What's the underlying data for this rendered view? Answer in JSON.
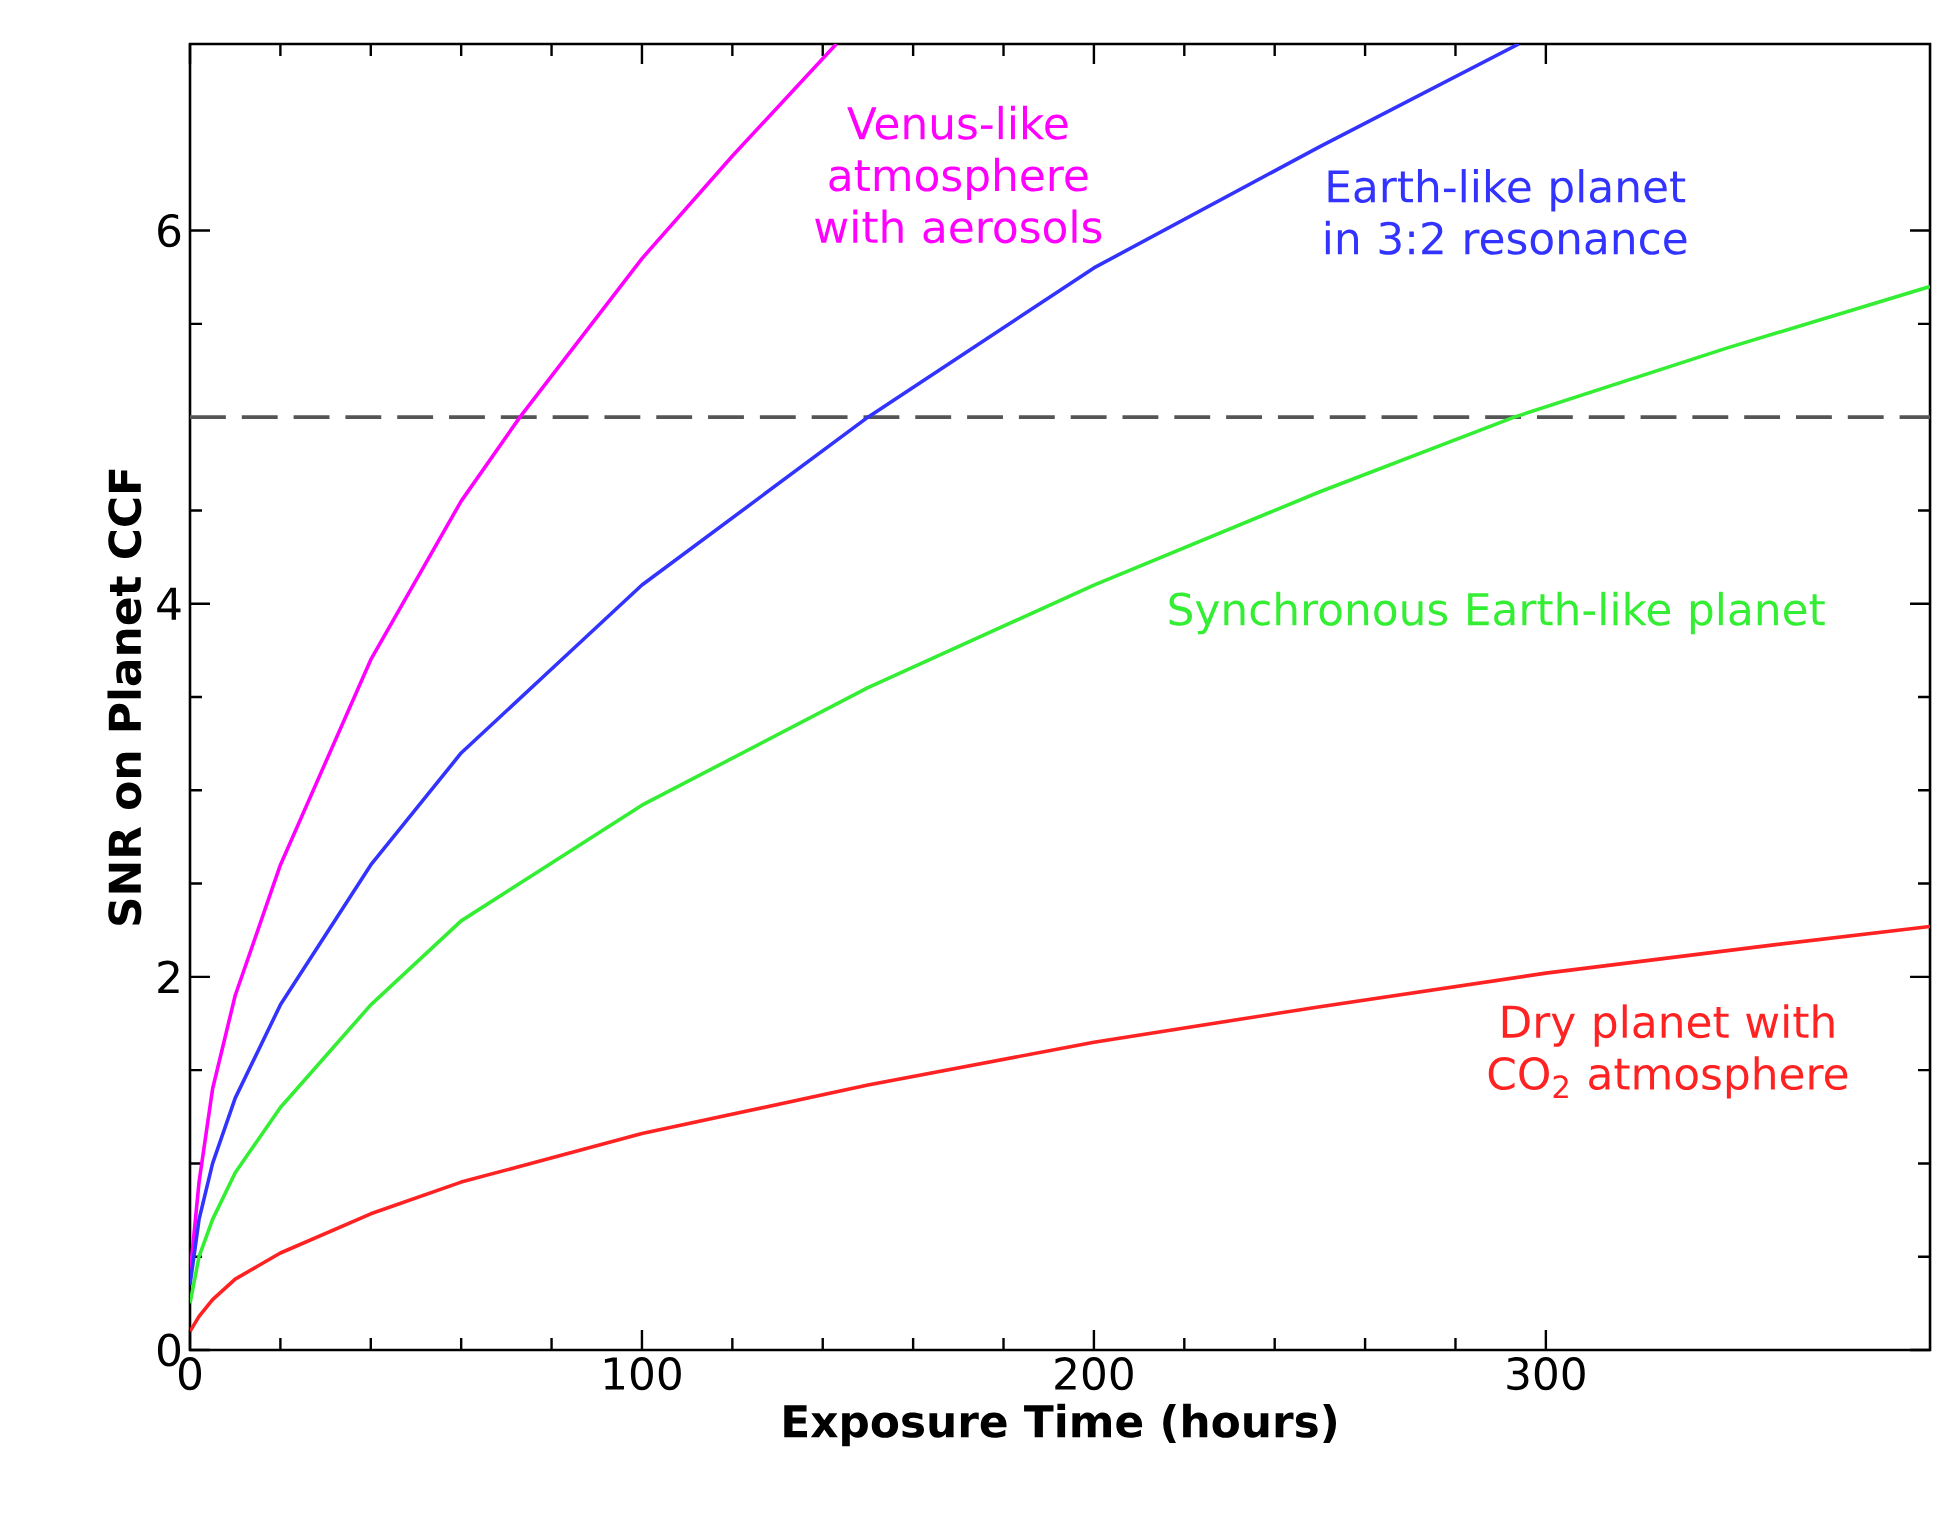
{
  "chart_data": {
    "type": "line",
    "xlabel": "Exposure Time (hours)",
    "ylabel": "SNR on Planet CCF",
    "xlim": [
      0,
      385
    ],
    "ylim": [
      0,
      7
    ],
    "xticks": [
      0,
      100,
      200,
      300
    ],
    "yticks": [
      0,
      2,
      4,
      6
    ],
    "grid": false,
    "legend": false,
    "marker": "none",
    "line_style": "solid",
    "series": [
      {
        "name": "Venus-like atmosphere with aerosols",
        "color": "#ff00ff",
        "x": [
          0,
          2,
          5,
          10,
          20,
          40,
          60,
          73,
          100,
          120,
          143
        ],
        "values": [
          0.4,
          0.9,
          1.4,
          1.9,
          2.6,
          3.7,
          4.55,
          5.0,
          5.85,
          6.4,
          7.0
        ]
      },
      {
        "name": "Earth-like planet in 3:2 resonance",
        "color": "#3333ff",
        "x": [
          0,
          2,
          5,
          10,
          20,
          40,
          60,
          80,
          100,
          150,
          200,
          250,
          294
        ],
        "values": [
          0.35,
          0.7,
          1.0,
          1.35,
          1.85,
          2.6,
          3.2,
          3.65,
          4.1,
          5.0,
          5.8,
          6.45,
          7.0
        ]
      },
      {
        "name": "Synchronous Earth-like planet",
        "color": "#33ee33",
        "x": [
          0,
          2,
          5,
          10,
          20,
          40,
          60,
          100,
          150,
          200,
          250,
          293,
          340,
          385
        ],
        "values": [
          0.25,
          0.5,
          0.7,
          0.95,
          1.3,
          1.85,
          2.3,
          2.92,
          3.55,
          4.1,
          4.6,
          5.0,
          5.37,
          5.7
        ]
      },
      {
        "name": "Dry planet with CO$_{2}$ atmosphere",
        "color": "#ff2222",
        "x": [
          0,
          2,
          5,
          10,
          20,
          40,
          60,
          100,
          150,
          200,
          250,
          300,
          350,
          385
        ],
        "values": [
          0.1,
          0.18,
          0.27,
          0.38,
          0.52,
          0.73,
          0.9,
          1.16,
          1.42,
          1.65,
          1.84,
          2.02,
          2.17,
          2.27
        ]
      }
    ],
    "ref_lines": [
      {
        "axis": "y",
        "value": 5,
        "color": "#555555",
        "line_style": "dashed"
      }
    ]
  }
}
